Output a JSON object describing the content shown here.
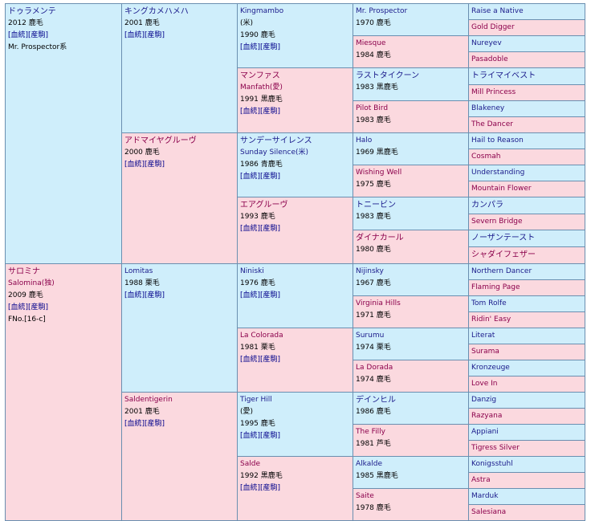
{
  "subject": {
    "name": "ドゥラメンテ",
    "year": "2012 鹿毛",
    "links": "[血統][産駒]",
    "line": "Mr. Prospector系"
  },
  "sire": {
    "name": "キングカメハメハ",
    "year": "2001 鹿毛",
    "links": "[血統][産駒]",
    "ss": {
      "name": "Kingmambo",
      "origin": "(米)",
      "year": "1990 鹿毛",
      "links": "[血統][産駒]",
      "sss": {
        "name": "Mr. Prospector",
        "year": "1970 鹿毛",
        "g5a": "Raise a Native",
        "g5b": "Gold Digger"
      },
      "ssd": {
        "name": "Miesque",
        "year": "1984 鹿毛",
        "g5a": "Nureyev",
        "g5b": "Pasadoble"
      }
    },
    "sd": {
      "name": "マンファス",
      "alt": "Manfath(愛)",
      "year": "1991 黒鹿毛",
      "links": "[血統][産駒]",
      "sds": {
        "name": "ラストタイクーン",
        "year": "1983 黒鹿毛",
        "g5a": "トライマイベスト",
        "g5b": "Mill Princess"
      },
      "sdd": {
        "name": "Pilot Bird",
        "year": "1983 鹿毛",
        "g5a": "Blakeney",
        "g5b": "The Dancer"
      }
    }
  },
  "sire_dam": {
    "name": "アドマイヤグルーヴ",
    "year": "2000 鹿毛",
    "links": "[血統][産駒]",
    "ds": {
      "name": "サンデーサイレンス",
      "alt": "Sunday Silence(米)",
      "year": "1986 青鹿毛",
      "links": "[血統][産駒]",
      "dss": {
        "name": "Halo",
        "year": "1969 黒鹿毛",
        "g5a": "Hail to Reason",
        "g5b": "Cosmah"
      },
      "dsd": {
        "name": "Wishing Well",
        "year": "1975 鹿毛",
        "g5a": "Understanding",
        "g5b": "Mountain Flower"
      }
    },
    "dd": {
      "name": "エアグルーヴ",
      "year": "1993 鹿毛",
      "links": "[血統][産駒]",
      "dds": {
        "name": "トニービン",
        "year": "1983 鹿毛",
        "g5a": "カンパラ",
        "g5b": "Severn Bridge"
      },
      "ddd": {
        "name": "ダイナカール",
        "year": "1980 鹿毛",
        "g5a": "ノーザンテースト",
        "g5b": "シャダイフェザー"
      }
    }
  },
  "dam": {
    "name": "サロミナ",
    "alt": "Salomina(独)",
    "year": "2009 鹿毛",
    "links": "[血統][産駒]",
    "family": "FNo.[16-c]"
  },
  "dam_sire": {
    "name": "Lomitas",
    "year": "1988 栗毛",
    "links": "[血統][産駒]",
    "ss": {
      "name": "Niniski",
      "year": "1976 鹿毛",
      "links": "[血統][産駒]",
      "sss": {
        "name": "Nijinsky",
        "year": "1967 鹿毛",
        "g5a": "Northern Dancer",
        "g5b": "Flaming Page"
      },
      "ssd": {
        "name": "Virginia Hills",
        "year": "1971 鹿毛",
        "g5a": "Tom Rolfe",
        "g5b": "Ridin' Easy"
      }
    },
    "sd": {
      "name": "La Colorada",
      "year": "1981 栗毛",
      "links": "[血統][産駒]",
      "sds": {
        "name": "Surumu",
        "year": "1974 栗毛",
        "g5a": "Literat",
        "g5b": "Surama"
      },
      "sdd": {
        "name": "La Dorada",
        "year": "1974 鹿毛",
        "g5a": "Kronzeuge",
        "g5b": "Love In"
      }
    }
  },
  "dam_dam": {
    "name": "Saldentigerin",
    "year": "2001 鹿毛",
    "links": "[血統][産駒]",
    "ds": {
      "name": "Tiger Hill",
      "origin": "(愛)",
      "year": "1995 鹿毛",
      "links": "[血統][産駒]",
      "dss": {
        "name": "デインヒル",
        "year": "1986 鹿毛",
        "g5a": "Danzig",
        "g5b": "Razyana"
      },
      "dsd": {
        "name": "The Filly",
        "year": "1981 芦毛",
        "g5a": "Appiani",
        "g5b": "Tigress Silver"
      }
    },
    "dd": {
      "name": "Salde",
      "year": "1992 黒鹿毛",
      "links": "[血統][産駒]",
      "dds": {
        "name": "Alkalde",
        "year": "1985 黒鹿毛",
        "g5a": "Konigsstuhl",
        "g5b": "Astra"
      },
      "ddd": {
        "name": "Saite",
        "year": "1978 鹿毛",
        "g5a": "Marduk",
        "g5b": "Salesiana"
      }
    }
  }
}
